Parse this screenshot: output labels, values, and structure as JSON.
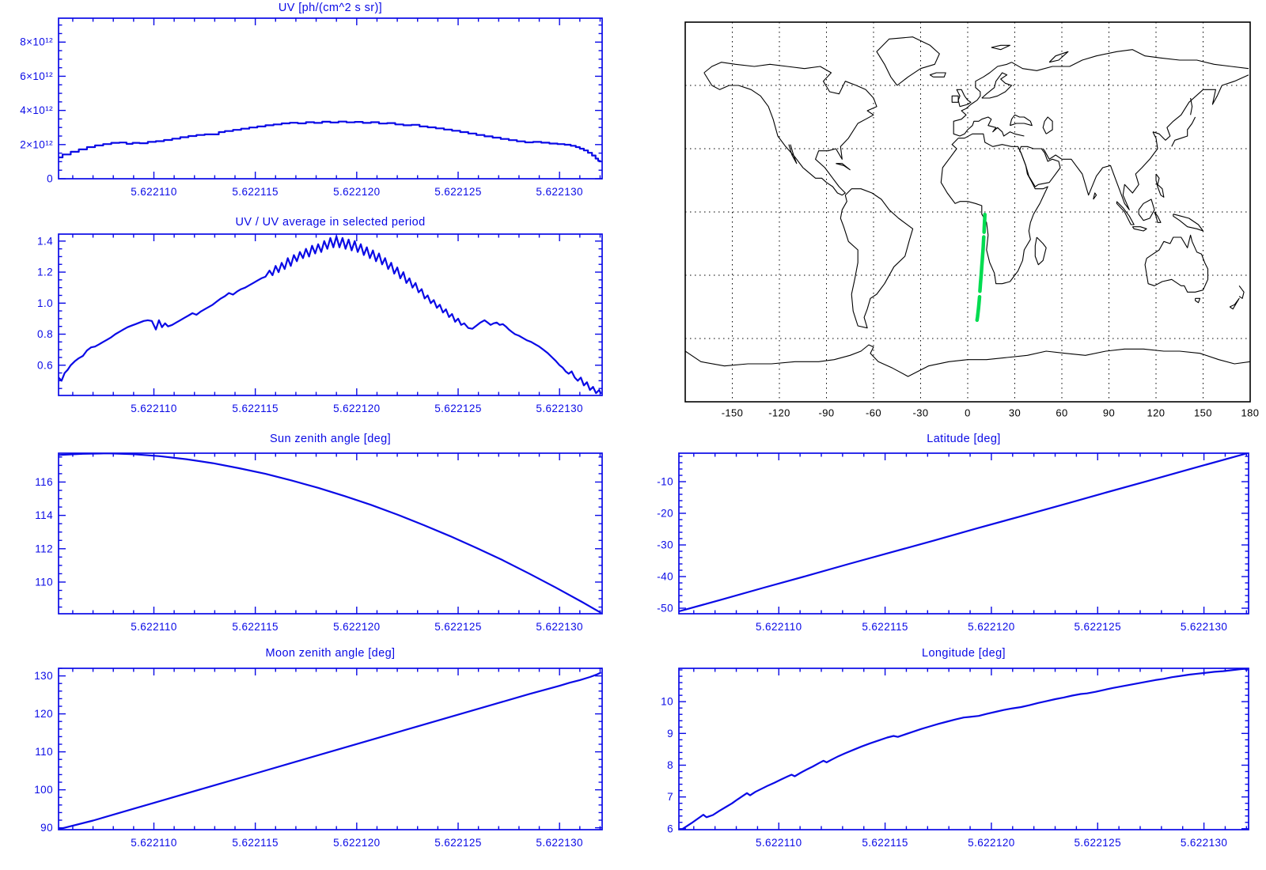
{
  "page": {
    "background": "#ffffff"
  },
  "colors": {
    "accent": "#0a0ae6",
    "map_outline": "#000000",
    "track_green": "#00dc50",
    "background": "#ffffff"
  },
  "chart_data": [
    {
      "id": "uv_flux",
      "type": "line",
      "draw": "step",
      "title": "UV [ph/(cm^2 s sr)]",
      "xlabel": "",
      "ylabel": "",
      "x_base": 5.6221,
      "x_off": [
        5.3,
        5.7,
        6.1,
        6.5,
        6.9,
        7.3,
        7.7,
        8.1,
        8.5,
        8.8,
        9.1,
        9.5,
        9.9,
        10.3,
        10.7,
        11.1,
        11.5,
        11.9,
        12.3,
        12.7,
        13.1,
        13.3,
        13.7,
        14.1,
        14.5,
        14.9,
        15.3,
        15.7,
        16.1,
        16.5,
        16.9,
        17.3,
        17.7,
        18.1,
        18.5,
        18.9,
        19.3,
        19.7,
        20.1,
        20.5,
        20.9,
        21.3,
        21.7,
        22.1,
        22.5,
        22.9,
        23.3,
        23.7,
        24.1,
        24.5,
        24.9,
        25.3,
        25.7,
        26.1,
        26.5,
        26.9,
        27.3,
        27.7,
        28.1,
        28.5,
        28.9,
        29.3,
        29.7,
        30.1,
        30.4,
        30.7,
        30.9,
        31.1,
        31.3,
        31.5,
        31.7,
        31.85,
        31.95,
        32.05
      ],
      "y": [
        1.25,
        1.42,
        1.58,
        1.72,
        1.85,
        1.95,
        2.03,
        2.1,
        2.12,
        2.04,
        2.1,
        2.08,
        2.16,
        2.2,
        2.27,
        2.35,
        2.43,
        2.5,
        2.56,
        2.6,
        2.6,
        2.73,
        2.79,
        2.86,
        2.93,
        3.0,
        3.06,
        3.13,
        3.18,
        3.24,
        3.28,
        3.24,
        3.31,
        3.27,
        3.34,
        3.29,
        3.35,
        3.3,
        3.33,
        3.27,
        3.31,
        3.23,
        3.26,
        3.18,
        3.13,
        3.16,
        3.06,
        3.01,
        2.95,
        2.88,
        2.81,
        2.73,
        2.65,
        2.56,
        2.48,
        2.41,
        2.33,
        2.26,
        2.19,
        2.13,
        2.16,
        2.11,
        2.06,
        2.03,
        1.99,
        1.93,
        1.85,
        1.76,
        1.66,
        1.52,
        1.36,
        1.18,
        1.05,
        1.02
      ],
      "y_scale": 1000000000000.0,
      "xlim": [
        5.6221053,
        5.6221321
      ],
      "ylim": [
        0,
        9400000000000.0
      ],
      "xticks": {
        "values": [
          5.62211,
          5.622115,
          5.62212,
          5.622125,
          5.62213
        ],
        "labels": [
          "5.622110",
          "5.622115",
          "5.622120",
          "5.622125",
          "5.622130"
        ]
      },
      "yticks": {
        "values": [
          0,
          2000000000000.0,
          4000000000000.0,
          6000000000000.0,
          8000000000000.0
        ],
        "labels": [
          "0",
          "2×10¹²",
          "4×10¹²",
          "6×10¹²",
          "8×10¹²"
        ]
      },
      "xminor": 1e-06,
      "yminor": 500000000000.0
    },
    {
      "id": "uv_ratio",
      "type": "line",
      "draw": "line",
      "title": "UV / UV average in selected period",
      "x_base": 5.6221,
      "x_off": [
        5.3,
        5.45,
        5.6,
        5.75,
        5.9,
        6.1,
        6.3,
        6.5,
        6.7,
        6.9,
        7.1,
        7.3,
        7.5,
        7.7,
        7.9,
        8.1,
        8.3,
        8.5,
        8.7,
        8.9,
        9.1,
        9.3,
        9.5,
        9.7,
        9.9,
        10.1,
        10.25,
        10.4,
        10.55,
        10.7,
        10.9,
        11.1,
        11.3,
        11.5,
        11.7,
        11.9,
        12.1,
        12.3,
        12.5,
        12.7,
        12.9,
        13.1,
        13.3,
        13.5,
        13.7,
        13.9,
        14.1,
        14.3,
        14.5,
        14.7,
        14.9,
        15.1,
        15.3,
        15.5,
        15.7,
        15.85,
        16.0,
        16.15,
        16.3,
        16.45,
        16.6,
        16.75,
        16.9,
        17.05,
        17.2,
        17.35,
        17.5,
        17.65,
        17.8,
        17.95,
        18.1,
        18.25,
        18.4,
        18.55,
        18.7,
        18.85,
        19.0,
        19.15,
        19.3,
        19.45,
        19.6,
        19.75,
        19.9,
        20.05,
        20.2,
        20.35,
        20.5,
        20.65,
        20.8,
        20.95,
        21.1,
        21.25,
        21.4,
        21.55,
        21.7,
        21.85,
        22.0,
        22.15,
        22.3,
        22.45,
        22.6,
        22.75,
        22.9,
        23.05,
        23.2,
        23.35,
        23.5,
        23.65,
        23.8,
        23.95,
        24.1,
        24.25,
        24.4,
        24.55,
        24.7,
        24.85,
        25.0,
        25.15,
        25.3,
        25.5,
        25.7,
        25.9,
        26.1,
        26.3,
        26.45,
        26.6,
        26.75,
        26.9,
        27.05,
        27.2,
        27.35,
        27.5,
        27.65,
        27.8,
        28.0,
        28.2,
        28.4,
        28.6,
        28.8,
        29.0,
        29.2,
        29.4,
        29.6,
        29.8,
        30.0,
        30.15,
        30.3,
        30.45,
        30.6,
        30.75,
        30.9,
        31.05,
        31.2,
        31.35,
        31.5,
        31.65,
        31.8,
        31.95,
        32.05
      ],
      "y": [
        0.52,
        0.5,
        0.55,
        0.57,
        0.6,
        0.625,
        0.645,
        0.66,
        0.695,
        0.715,
        0.72,
        0.735,
        0.75,
        0.765,
        0.78,
        0.8,
        0.815,
        0.83,
        0.845,
        0.855,
        0.865,
        0.875,
        0.885,
        0.89,
        0.885,
        0.83,
        0.89,
        0.845,
        0.87,
        0.85,
        0.86,
        0.875,
        0.89,
        0.905,
        0.92,
        0.935,
        0.925,
        0.945,
        0.96,
        0.975,
        0.99,
        1.01,
        1.03,
        1.045,
        1.065,
        1.055,
        1.075,
        1.09,
        1.1,
        1.115,
        1.13,
        1.145,
        1.16,
        1.17,
        1.21,
        1.18,
        1.24,
        1.2,
        1.26,
        1.22,
        1.29,
        1.24,
        1.31,
        1.27,
        1.33,
        1.29,
        1.35,
        1.3,
        1.37,
        1.32,
        1.38,
        1.33,
        1.4,
        1.35,
        1.42,
        1.36,
        1.43,
        1.36,
        1.42,
        1.35,
        1.41,
        1.34,
        1.4,
        1.33,
        1.38,
        1.31,
        1.36,
        1.29,
        1.34,
        1.27,
        1.32,
        1.25,
        1.29,
        1.22,
        1.26,
        1.19,
        1.23,
        1.16,
        1.2,
        1.13,
        1.16,
        1.1,
        1.13,
        1.07,
        1.09,
        1.03,
        1.05,
        1.0,
        1.02,
        0.97,
        0.99,
        0.94,
        0.96,
        0.91,
        0.93,
        0.88,
        0.9,
        0.86,
        0.87,
        0.84,
        0.835,
        0.855,
        0.875,
        0.89,
        0.875,
        0.86,
        0.87,
        0.875,
        0.86,
        0.865,
        0.85,
        0.83,
        0.815,
        0.8,
        0.79,
        0.775,
        0.76,
        0.75,
        0.735,
        0.72,
        0.7,
        0.68,
        0.655,
        0.63,
        0.6,
        0.585,
        0.56,
        0.545,
        0.56,
        0.52,
        0.5,
        0.52,
        0.47,
        0.49,
        0.44,
        0.46,
        0.42,
        0.44,
        0.415
      ],
      "y_scale": 1,
      "xlim": [
        5.6221053,
        5.6221321
      ],
      "ylim": [
        0.405,
        1.445
      ],
      "xticks": {
        "values": [
          5.62211,
          5.622115,
          5.62212,
          5.622125,
          5.62213
        ],
        "labels": [
          "5.622110",
          "5.622115",
          "5.622120",
          "5.622125",
          "5.622130"
        ]
      },
      "yticks": {
        "values": [
          0.6,
          0.8,
          1.0,
          1.2,
          1.4
        ],
        "labels": [
          "0.6",
          "0.8",
          "1.0",
          "1.2",
          "1.4"
        ]
      },
      "xminor": 1e-06,
      "yminor": 0.05
    },
    {
      "id": "sun_zenith",
      "type": "line",
      "draw": "line",
      "title": "Sun zenith angle [deg]",
      "x_base": 5.6221,
      "x_off": [
        5.3,
        6.5,
        7.7,
        9.0,
        10.3,
        11.6,
        12.9,
        14.2,
        15.5,
        16.8,
        18.1,
        19.4,
        20.7,
        22.0,
        23.3,
        24.6,
        25.9,
        27.2,
        28.5,
        29.8,
        31.1,
        32.05
      ],
      "y": [
        117.62,
        117.69,
        117.72,
        117.67,
        117.55,
        117.37,
        117.13,
        116.83,
        116.49,
        116.09,
        115.65,
        115.16,
        114.63,
        114.05,
        113.42,
        112.76,
        112.05,
        111.31,
        110.51,
        109.68,
        108.81,
        108.15
      ],
      "y_scale": 1,
      "xlim": [
        5.6221053,
        5.6221321
      ],
      "ylim": [
        108.1,
        117.73
      ],
      "xticks": {
        "values": [
          5.62211,
          5.622115,
          5.62212,
          5.622125,
          5.62213
        ],
        "labels": [
          "5.622110",
          "5.622115",
          "5.622120",
          "5.622125",
          "5.622130"
        ]
      },
      "yticks": {
        "values": [
          110,
          112,
          114,
          116
        ],
        "labels": [
          "110",
          "112",
          "114",
          "116"
        ]
      },
      "xminor": 1e-06,
      "yminor": 0.5
    },
    {
      "id": "moon_zenith",
      "type": "line",
      "draw": "line",
      "title": "Moon zenith angle [deg]",
      "x_base": 5.6221,
      "x_off": [
        5.3,
        7,
        9,
        11,
        13,
        15,
        17,
        19,
        21,
        23,
        25,
        27,
        28.5,
        30,
        30.5,
        31,
        31.5,
        31.8,
        32.05
      ],
      "y": [
        89.6,
        91.9,
        95.0,
        98.1,
        101.2,
        104.3,
        107.4,
        110.5,
        113.6,
        116.7,
        119.8,
        122.9,
        125.2,
        127.4,
        128.2,
        128.9,
        129.7,
        130.3,
        130.9
      ],
      "y_scale": 1,
      "xlim": [
        5.6221053,
        5.6221321
      ],
      "ylim": [
        89.5,
        132.0
      ],
      "xticks": {
        "values": [
          5.62211,
          5.622115,
          5.62212,
          5.622125,
          5.62213
        ],
        "labels": [
          "5.622110",
          "5.622115",
          "5.622120",
          "5.622125",
          "5.622130"
        ]
      },
      "yticks": {
        "values": [
          90,
          100,
          110,
          120,
          130
        ],
        "labels": [
          "90",
          "100",
          "110",
          "120",
          "130"
        ]
      },
      "xminor": 1e-06,
      "yminor": 2
    },
    {
      "id": "latitude",
      "type": "line",
      "draw": "line",
      "title": "Latitude [deg]",
      "x_base": 5.6221,
      "x_off": [
        5.3,
        7.3,
        9.3,
        11.3,
        13.3,
        15.3,
        17.3,
        19.3,
        21.3,
        23.3,
        25.3,
        27.3,
        29.3,
        31.3,
        32.05
      ],
      "y": [
        -51.0,
        -47.3,
        -43.5,
        -39.8,
        -36.0,
        -32.3,
        -28.6,
        -24.8,
        -21.1,
        -17.4,
        -13.6,
        -9.9,
        -6.1,
        -2.4,
        -1.0
      ],
      "y_scale": 1,
      "xlim": [
        5.6221053,
        5.6221321
      ],
      "ylim": [
        -51.75,
        -1.0
      ],
      "xticks": {
        "values": [
          5.62211,
          5.622115,
          5.62212,
          5.622125,
          5.62213
        ],
        "labels": [
          "5.622110",
          "5.622115",
          "5.622120",
          "5.622125",
          "5.622130"
        ]
      },
      "yticks": {
        "values": [
          -50,
          -40,
          -30,
          -20,
          -10
        ],
        "labels": [
          "-50",
          "-40",
          "-30",
          "-20",
          "-10"
        ]
      },
      "xminor": 1e-06,
      "yminor": 2
    },
    {
      "id": "longitude",
      "type": "line",
      "draw": "line",
      "title": "Longitude [deg]",
      "x_base": 5.6221,
      "x_off": [
        5.3,
        5.6,
        5.9,
        6.2,
        6.45,
        6.6,
        6.9,
        7.2,
        7.5,
        7.8,
        8.05,
        8.3,
        8.5,
        8.65,
        8.9,
        9.2,
        9.5,
        9.8,
        10.1,
        10.4,
        10.6,
        10.75,
        11.0,
        11.3,
        11.6,
        11.9,
        12.1,
        12.25,
        12.5,
        12.8,
        13.1,
        13.5,
        13.9,
        14.3,
        14.7,
        15.1,
        15.4,
        15.6,
        15.9,
        16.3,
        16.7,
        17.1,
        17.5,
        17.9,
        18.3,
        18.7,
        19.0,
        19.4,
        19.8,
        20.2,
        20.6,
        21.0,
        21.4,
        21.8,
        22.2,
        22.6,
        23.0,
        23.4,
        23.8,
        24.2,
        24.5,
        24.9,
        25.3,
        25.7,
        26.1,
        26.5,
        26.9,
        27.3,
        27.7,
        28.1,
        28.5,
        28.9,
        29.3,
        29.7,
        30.1,
        30.5,
        30.9,
        31.3,
        31.7,
        32.05
      ],
      "y": [
        5.92,
        6.05,
        6.18,
        6.32,
        6.44,
        6.36,
        6.43,
        6.56,
        6.68,
        6.8,
        6.92,
        7.03,
        7.12,
        7.05,
        7.16,
        7.26,
        7.36,
        7.45,
        7.55,
        7.64,
        7.7,
        7.65,
        7.75,
        7.86,
        7.96,
        8.07,
        8.14,
        8.09,
        8.18,
        8.28,
        8.37,
        8.48,
        8.59,
        8.69,
        8.78,
        8.87,
        8.92,
        8.89,
        8.96,
        9.05,
        9.14,
        9.22,
        9.3,
        9.37,
        9.44,
        9.5,
        9.52,
        9.55,
        9.62,
        9.68,
        9.74,
        9.79,
        9.83,
        9.89,
        9.96,
        10.02,
        10.08,
        10.13,
        10.19,
        10.24,
        10.26,
        10.31,
        10.37,
        10.43,
        10.48,
        10.53,
        10.58,
        10.63,
        10.68,
        10.72,
        10.77,
        10.81,
        10.85,
        10.88,
        10.91,
        10.94,
        10.96,
        10.99,
        11.02,
        11.04
      ],
      "y_scale": 1,
      "xlim": [
        5.6221053,
        5.6221321
      ],
      "ylim": [
        5.97,
        11.05
      ],
      "xticks": {
        "values": [
          5.62211,
          5.622115,
          5.62212,
          5.622125,
          5.62213
        ],
        "labels": [
          "5.622110",
          "5.622115",
          "5.622120",
          "5.622125",
          "5.622130"
        ]
      },
      "yticks": {
        "values": [
          6,
          7,
          8,
          9,
          10
        ],
        "labels": [
          "6",
          "7",
          "8",
          "9",
          "10"
        ]
      },
      "xminor": 1e-06,
      "yminor": 0.2
    },
    {
      "id": "ground_track_map",
      "type": "map",
      "title": "",
      "lonlim": [
        -180,
        180
      ],
      "latlim": [
        -90,
        90
      ],
      "grid_lon": [
        -150,
        -120,
        -90,
        -60,
        -30,
        0,
        30,
        60,
        90,
        120,
        150
      ],
      "grid_lat": [
        -60,
        -30,
        0,
        30,
        60
      ],
      "lon_ticks": {
        "values": [
          -150,
          -120,
          -90,
          -60,
          -30,
          0,
          30,
          60,
          90,
          120,
          150,
          180
        ],
        "labels": [
          "-150",
          "-120",
          "-90",
          "-60",
          "-30",
          "0",
          "30",
          "60",
          "90",
          "120",
          "150",
          "180"
        ]
      },
      "track": {
        "color": "#00dc50",
        "segments": [
          [
            [
              10.95,
              -1.2
            ],
            [
              10.85,
              -3.2
            ],
            [
              10.7,
              -5.4
            ],
            [
              10.55,
              -7.6
            ],
            [
              10.42,
              -9.6
            ]
          ],
          [
            [
              10.25,
              -11.8
            ],
            [
              10.05,
              -14.5
            ],
            [
              9.82,
              -17.3
            ],
            [
              9.55,
              -20.2
            ],
            [
              9.28,
              -23.0
            ],
            [
              9.0,
              -25.8
            ],
            [
              8.7,
              -28.6
            ],
            [
              8.4,
              -31.4
            ],
            [
              8.12,
              -34.0
            ],
            [
              7.9,
              -36.2
            ],
            [
              7.78,
              -37.6
            ]
          ],
          [
            [
              7.55,
              -40.2
            ],
            [
              7.25,
              -42.8
            ],
            [
              6.95,
              -45.2
            ],
            [
              6.6,
              -47.6
            ],
            [
              6.25,
              -49.8
            ],
            [
              5.95,
              -51.3
            ]
          ]
        ]
      }
    }
  ]
}
